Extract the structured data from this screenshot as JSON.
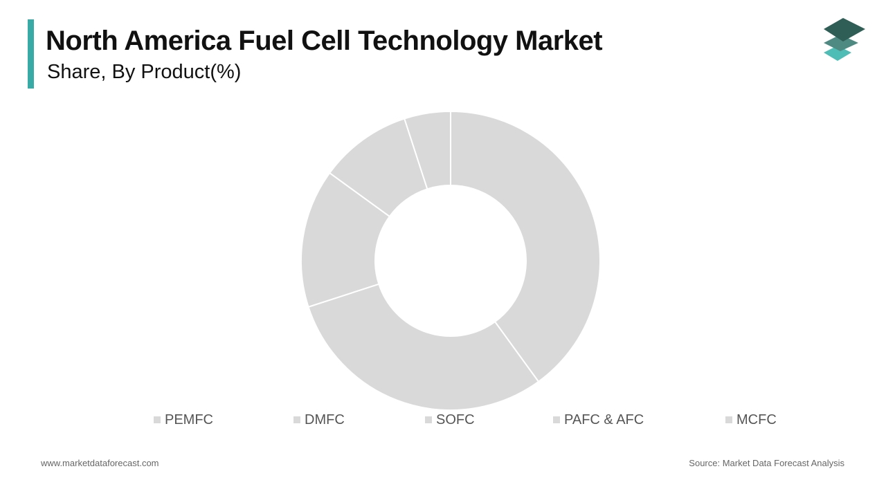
{
  "header": {
    "title": "North America Fuel Cell Technology Market",
    "subtitle": "Share, By Product(%)"
  },
  "colors": {
    "accent": "#3aaaa6",
    "slice_fill": "#d9d9d9",
    "slice_border": "#ffffff",
    "logo_top": "#2e5e55",
    "logo_middle": "#4e8a82",
    "logo_bottom": "#4dbdb5"
  },
  "logo_icon": "stacked-layers-icon",
  "chart_data": {
    "type": "pie",
    "variant": "donut",
    "categories": [
      "PEMFC",
      "DMFC",
      "SOFC",
      "PAFC & AFC",
      "MCFC"
    ],
    "values": [
      40,
      30,
      15,
      10,
      5
    ],
    "title": "North America Fuel Cell Technology Market",
    "subtitle": "Share, By Product(%)",
    "legend": "bottom",
    "grid": false
  },
  "footer": {
    "website": "www.marketdataforecast.com",
    "source": "Source: Market Data Forecast Analysis"
  }
}
